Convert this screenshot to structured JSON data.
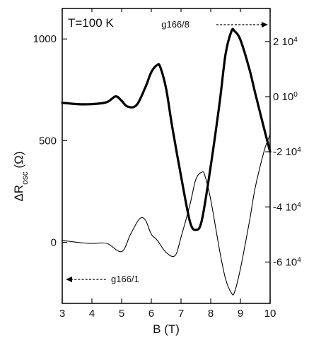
{
  "chart_data": {
    "type": "line",
    "annotation_condition": "T=100 K",
    "xlabel": "B (T)",
    "ylabel_left": {
      "main": "ΔR",
      "sub": "osc",
      "unit": " (Ω)"
    },
    "xlim": [
      3,
      10
    ],
    "ylim_left": [
      -300,
      1150
    ],
    "ylim_right": [
      -75000,
      32000
    ],
    "x_ticks": [
      3,
      4,
      5,
      6,
      7,
      8,
      9,
      10
    ],
    "x_tick_labels": [
      "3",
      "4",
      "5",
      "6",
      "7",
      "8",
      "9",
      "10"
    ],
    "y_left_ticks": [
      0,
      500,
      1000
    ],
    "y_left_tick_labels": [
      "0",
      "500",
      "1000"
    ],
    "y_right_ticks": [
      20000,
      0,
      -20000,
      -40000,
      -60000
    ],
    "y_right_tick_labels": [
      {
        "mant": "2 10",
        "exp": "4"
      },
      {
        "mant": "0 10",
        "exp": "0"
      },
      {
        "mant": "-2 10",
        "exp": "4"
      },
      {
        "mant": "-4 10",
        "exp": "4"
      },
      {
        "mant": "-6 10",
        "exp": "4"
      }
    ],
    "grid": false,
    "series": [
      {
        "name": "g166/8",
        "axis": "right",
        "style": "thick",
        "arrow": "right",
        "x": [
          3.0,
          3.5,
          4.0,
          4.5,
          4.8,
          5.0,
          5.2,
          5.5,
          5.8,
          6.0,
          6.2,
          6.3,
          6.5,
          6.7,
          7.0,
          7.3,
          7.5,
          7.7,
          8.0,
          8.3,
          8.5,
          8.7,
          8.8,
          9.0,
          9.3,
          9.5,
          9.8,
          10.0
        ],
        "y": [
          -2200,
          -2700,
          -2700,
          -2000,
          100,
          -1500,
          -3600,
          -3100,
          3400,
          8900,
          11500,
          10800,
          2800,
          -10700,
          -28800,
          -45300,
          -48300,
          -44900,
          -25200,
          -2200,
          15400,
          23800,
          23800,
          20600,
          10100,
          1200,
          -11700,
          -20000
        ]
      },
      {
        "name": "g166/1",
        "axis": "left",
        "style": "thin",
        "arrow": "left",
        "x": [
          3.0,
          3.5,
          4.0,
          4.5,
          5.0,
          5.3,
          5.6,
          5.8,
          6.0,
          6.2,
          6.5,
          6.8,
          7.0,
          7.3,
          7.5,
          7.7,
          7.8,
          8.0,
          8.3,
          8.5,
          8.7,
          8.8,
          9.0,
          9.3,
          9.5,
          9.8,
          10.0
        ],
        "y": [
          10,
          0,
          -5,
          -5,
          -45,
          40,
          115,
          110,
          40,
          10,
          -50,
          -65,
          25,
          185,
          310,
          345,
          330,
          210,
          -40,
          -180,
          -250,
          -245,
          -130,
          100,
          270,
          450,
          530
        ]
      }
    ]
  }
}
